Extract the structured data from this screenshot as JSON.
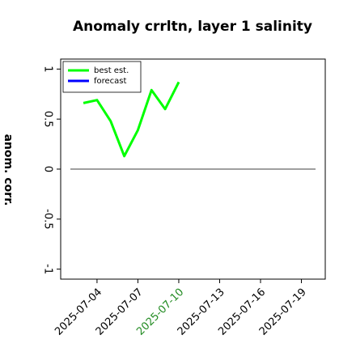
{
  "chart_data": {
    "type": "line",
    "title": "Anomaly crrltn, layer 1 salinity",
    "y_label": "anom. corr.",
    "x": [
      "2025-07-03",
      "2025-07-04",
      "2025-07-05",
      "2025-07-06",
      "2025-07-07",
      "2025-07-08",
      "2025-07-09",
      "2025-07-10"
    ],
    "series": [
      {
        "name": "best est.",
        "color": "#00ff00",
        "values": [
          0.66,
          0.69,
          0.48,
          0.13,
          0.39,
          0.79,
          0.6,
          0.87
        ]
      },
      {
        "name": "forecast",
        "color": "#0000ff",
        "values": [
          null,
          null,
          null,
          null,
          null,
          null,
          null,
          null
        ]
      }
    ],
    "xlim": [
      "2025-07-01T08:00",
      "2025-07-20T18:00"
    ],
    "xticks": [
      "2025-07-04",
      "2025-07-07",
      "2025-07-10",
      "2025-07-13",
      "2025-07-16",
      "2025-07-19"
    ],
    "highlight_xtick": "2025-07-10",
    "highlight_color": "#228b22",
    "ylim": [
      -1.1,
      1.1
    ],
    "yticks": [
      -1.0,
      -0.5,
      0.0,
      0.5,
      1.0
    ],
    "reference_line": 0.0,
    "legend": "upper left"
  }
}
